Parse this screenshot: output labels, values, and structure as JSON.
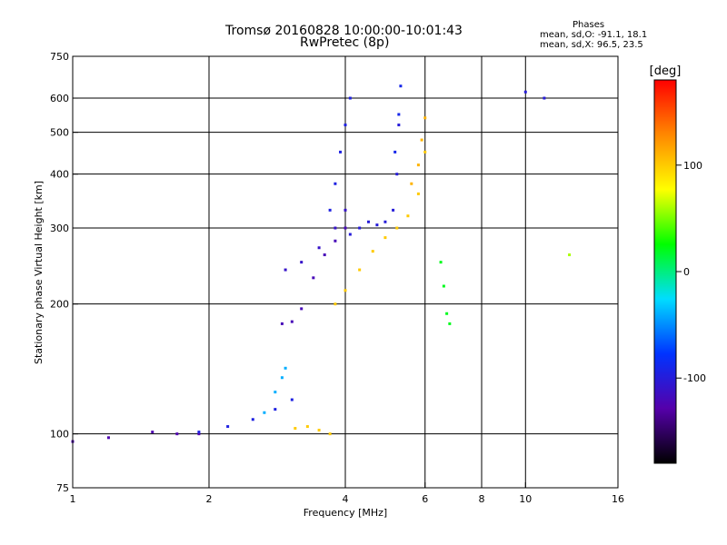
{
  "title_line1": "Tromsø 20160828 10:00:00-10:01:43",
  "title_line2": "RwPretec (8p)",
  "phase_stats": {
    "header": "Phases",
    "line1": "mean, sd,O: -91.1, 18.1",
    "line2": "mean, sd,X:  96.5, 23.5"
  },
  "colorbar": {
    "label": "[deg]",
    "ticks": [
      "100",
      "0",
      "-100"
    ],
    "tick_values": [
      100,
      0,
      -100
    ],
    "range": [
      -180,
      180
    ],
    "colors": [
      "#000000",
      "#5500aa",
      "#0033ff",
      "#00ddff",
      "#00ff00",
      "#ffff00",
      "#ff8800",
      "#ff0000"
    ]
  },
  "chart_data": {
    "type": "scatter",
    "title": "Tromsø 20160828 10:00:00-10:01:43",
    "subtitle": "RwPretec (8p)",
    "xlabel": "Frequency [MHz]",
    "ylabel": "Stationary phase Virtual Height [km]",
    "x_scale": "log",
    "y_scale": "log",
    "xlim": [
      1,
      16
    ],
    "ylim": [
      75,
      750
    ],
    "x_ticks": [
      "1",
      "2",
      "4",
      "6",
      "8",
      "10",
      "16"
    ],
    "x_tick_values": [
      1,
      2,
      4,
      6,
      8,
      10,
      16
    ],
    "y_ticks": [
      "75",
      "100",
      "200",
      "300",
      "400",
      "500",
      "600",
      "750"
    ],
    "y_tick_values": [
      75,
      100,
      200,
      300,
      400,
      500,
      600,
      750
    ],
    "grid_x": [
      2,
      4,
      6,
      8,
      10
    ],
    "grid_y": [
      100,
      200,
      300,
      400,
      500,
      600
    ],
    "color_by": "phase [deg]",
    "segments": [
      {
        "x": [
          1.0,
          1.2,
          1.5,
          1.7,
          1.9
        ],
        "y": [
          96,
          98,
          101,
          100,
          100
        ],
        "phase": -125
      },
      {
        "x": [
          1.9,
          2.2,
          2.5,
          2.8,
          3.05
        ],
        "y": [
          101,
          104,
          108,
          114,
          120
        ],
        "phase": -95
      },
      {
        "x": [
          2.65,
          2.8,
          2.9,
          2.95
        ],
        "y": [
          112,
          125,
          135,
          142
        ],
        "phase": -40
      },
      {
        "x": [
          3.1,
          3.3,
          3.5,
          3.7
        ],
        "y": [
          103,
          104,
          102,
          100
        ],
        "phase": 100
      },
      {
        "x": [
          2.9,
          3.05,
          3.2,
          3.4,
          3.6,
          3.8,
          4.0
        ],
        "y": [
          180,
          182,
          195,
          230,
          260,
          280,
          300
        ],
        "phase": -120
      },
      {
        "x": [
          2.95,
          3.2,
          3.5,
          3.8,
          4.0
        ],
        "y": [
          240,
          250,
          270,
          300,
          330
        ],
        "phase": -110
      },
      {
        "x": [
          3.7,
          3.8,
          3.9,
          4.0,
          4.1
        ],
        "y": [
          330,
          380,
          450,
          520,
          600
        ],
        "phase": -95
      },
      {
        "x": [
          4.1,
          4.3,
          4.5,
          4.7,
          4.9,
          5.1,
          5.2,
          5.25
        ],
        "y": [
          290,
          300,
          310,
          305,
          310,
          330,
          400,
          520
        ],
        "phase": -100
      },
      {
        "x": [
          5.15,
          5.25,
          5.3
        ],
        "y": [
          450,
          550,
          640
        ],
        "phase": -90
      },
      {
        "x": [
          3.8,
          4.0,
          4.3,
          4.6,
          4.9,
          5.2,
          5.5,
          5.8,
          6.0
        ],
        "y": [
          200,
          215,
          240,
          265,
          285,
          300,
          320,
          360,
          450
        ],
        "phase": 100
      },
      {
        "x": [
          5.6,
          5.8,
          5.9,
          6.0
        ],
        "y": [
          380,
          420,
          480,
          540
        ],
        "phase": 110
      },
      {
        "x": [
          6.5,
          6.6,
          6.7,
          6.8
        ],
        "y": [
          250,
          220,
          190,
          180
        ],
        "phase": 20
      },
      {
        "x": [
          10.0,
          11.0
        ],
        "y": [
          620,
          600
        ],
        "phase": -100
      },
      {
        "x": [
          12.5
        ],
        "y": [
          260
        ],
        "phase": 60
      }
    ]
  }
}
